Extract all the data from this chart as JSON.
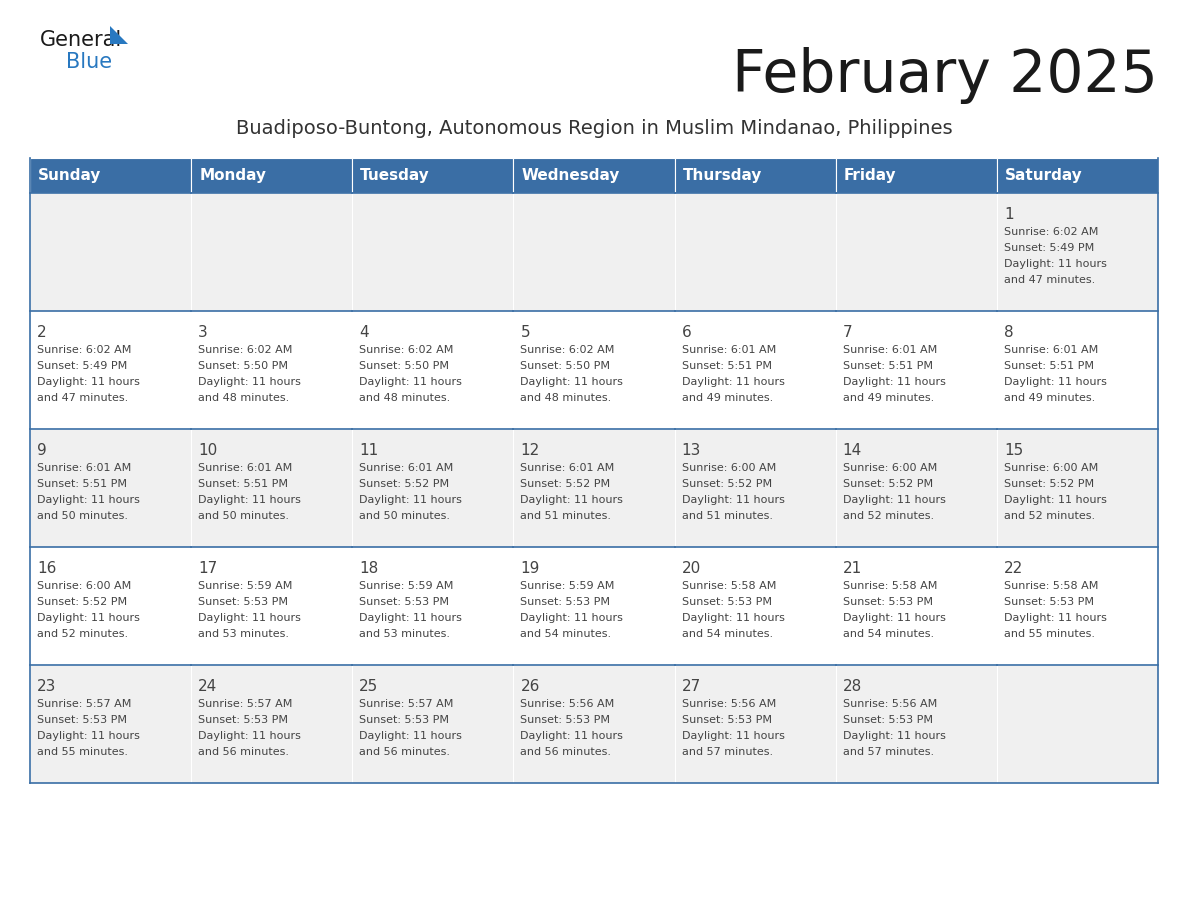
{
  "title": "February 2025",
  "subtitle": "Buadiposo-Buntong, Autonomous Region in Muslim Mindanao, Philippines",
  "days_of_week": [
    "Sunday",
    "Monday",
    "Tuesday",
    "Wednesday",
    "Thursday",
    "Friday",
    "Saturday"
  ],
  "header_bg": "#3a6ea5",
  "header_text": "#ffffff",
  "cell_bg_odd": "#f0f0f0",
  "cell_bg_even": "#ffffff",
  "cell_border_color": "#3a6ea5",
  "outer_border_color": "#3a6ea5",
  "text_color": "#444444",
  "number_color": "#444444",
  "calendar_data": [
    [
      null,
      null,
      null,
      null,
      null,
      null,
      1
    ],
    [
      2,
      3,
      4,
      5,
      6,
      7,
      8
    ],
    [
      9,
      10,
      11,
      12,
      13,
      14,
      15
    ],
    [
      16,
      17,
      18,
      19,
      20,
      21,
      22
    ],
    [
      23,
      24,
      25,
      26,
      27,
      28,
      null
    ]
  ],
  "cell_info": {
    "1": {
      "sunrise": "6:02 AM",
      "sunset": "5:49 PM",
      "daylight": "11 hours and 47 minutes"
    },
    "2": {
      "sunrise": "6:02 AM",
      "sunset": "5:49 PM",
      "daylight": "11 hours and 47 minutes"
    },
    "3": {
      "sunrise": "6:02 AM",
      "sunset": "5:50 PM",
      "daylight": "11 hours and 48 minutes"
    },
    "4": {
      "sunrise": "6:02 AM",
      "sunset": "5:50 PM",
      "daylight": "11 hours and 48 minutes"
    },
    "5": {
      "sunrise": "6:02 AM",
      "sunset": "5:50 PM",
      "daylight": "11 hours and 48 minutes"
    },
    "6": {
      "sunrise": "6:01 AM",
      "sunset": "5:51 PM",
      "daylight": "11 hours and 49 minutes"
    },
    "7": {
      "sunrise": "6:01 AM",
      "sunset": "5:51 PM",
      "daylight": "11 hours and 49 minutes"
    },
    "8": {
      "sunrise": "6:01 AM",
      "sunset": "5:51 PM",
      "daylight": "11 hours and 49 minutes"
    },
    "9": {
      "sunrise": "6:01 AM",
      "sunset": "5:51 PM",
      "daylight": "11 hours and 50 minutes"
    },
    "10": {
      "sunrise": "6:01 AM",
      "sunset": "5:51 PM",
      "daylight": "11 hours and 50 minutes"
    },
    "11": {
      "sunrise": "6:01 AM",
      "sunset": "5:52 PM",
      "daylight": "11 hours and 50 minutes"
    },
    "12": {
      "sunrise": "6:01 AM",
      "sunset": "5:52 PM",
      "daylight": "11 hours and 51 minutes"
    },
    "13": {
      "sunrise": "6:00 AM",
      "sunset": "5:52 PM",
      "daylight": "11 hours and 51 minutes"
    },
    "14": {
      "sunrise": "6:00 AM",
      "sunset": "5:52 PM",
      "daylight": "11 hours and 52 minutes"
    },
    "15": {
      "sunrise": "6:00 AM",
      "sunset": "5:52 PM",
      "daylight": "11 hours and 52 minutes"
    },
    "16": {
      "sunrise": "6:00 AM",
      "sunset": "5:52 PM",
      "daylight": "11 hours and 52 minutes"
    },
    "17": {
      "sunrise": "5:59 AM",
      "sunset": "5:53 PM",
      "daylight": "11 hours and 53 minutes"
    },
    "18": {
      "sunrise": "5:59 AM",
      "sunset": "5:53 PM",
      "daylight": "11 hours and 53 minutes"
    },
    "19": {
      "sunrise": "5:59 AM",
      "sunset": "5:53 PM",
      "daylight": "11 hours and 54 minutes"
    },
    "20": {
      "sunrise": "5:58 AM",
      "sunset": "5:53 PM",
      "daylight": "11 hours and 54 minutes"
    },
    "21": {
      "sunrise": "5:58 AM",
      "sunset": "5:53 PM",
      "daylight": "11 hours and 54 minutes"
    },
    "22": {
      "sunrise": "5:58 AM",
      "sunset": "5:53 PM",
      "daylight": "11 hours and 55 minutes"
    },
    "23": {
      "sunrise": "5:57 AM",
      "sunset": "5:53 PM",
      "daylight": "11 hours and 55 minutes"
    },
    "24": {
      "sunrise": "5:57 AM",
      "sunset": "5:53 PM",
      "daylight": "11 hours and 56 minutes"
    },
    "25": {
      "sunrise": "5:57 AM",
      "sunset": "5:53 PM",
      "daylight": "11 hours and 56 minutes"
    },
    "26": {
      "sunrise": "5:56 AM",
      "sunset": "5:53 PM",
      "daylight": "11 hours and 56 minutes"
    },
    "27": {
      "sunrise": "5:56 AM",
      "sunset": "5:53 PM",
      "daylight": "11 hours and 57 minutes"
    },
    "28": {
      "sunrise": "5:56 AM",
      "sunset": "5:53 PM",
      "daylight": "11 hours and 57 minutes"
    }
  },
  "logo_general_color": "#1a1a1a",
  "logo_blue_color": "#2878c0",
  "logo_triangle_color": "#2878c0",
  "title_fontsize": 42,
  "subtitle_fontsize": 14,
  "header_fontsize": 11,
  "day_num_fontsize": 11,
  "cell_text_fontsize": 8
}
